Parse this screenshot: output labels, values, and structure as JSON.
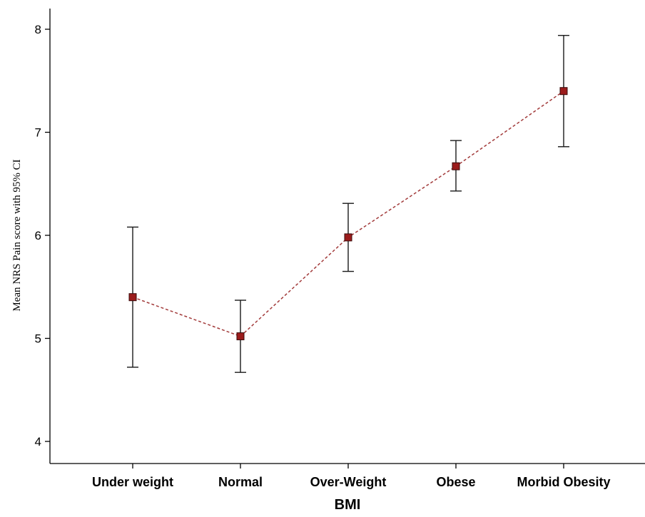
{
  "chart_data": {
    "type": "line",
    "title": "",
    "xlabel": "BMI",
    "ylabel": "Mean NRS Pain score with 95% CI",
    "categories": [
      "Under weight",
      "Normal",
      "Over-Weight",
      "Obese",
      "Morbid Obesity"
    ],
    "series": [
      {
        "values": [
          5.4,
          5.02,
          5.98,
          6.67,
          7.4
        ],
        "ci_lower": [
          4.72,
          4.67,
          5.65,
          6.43,
          6.86
        ],
        "ci_upper": [
          6.08,
          5.37,
          6.31,
          6.92,
          7.94
        ],
        "line_style": "dashed",
        "marker": "square"
      }
    ],
    "yticks": [
      4,
      5,
      6,
      7,
      8
    ],
    "ylim": [
      3.9,
      8.2
    ],
    "grid": false,
    "legend": "none"
  },
  "colors": {
    "line": "#a23a3a",
    "marker_fill": "#9b1c1c",
    "marker_stroke": "#3a0a0a",
    "error_bar": "#1a1a1a",
    "axis": "#000000"
  }
}
